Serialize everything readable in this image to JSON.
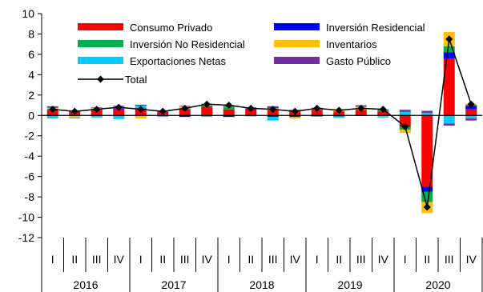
{
  "chart_data": {
    "type": "bar",
    "stacked": true,
    "ylim": [
      -12,
      10
    ],
    "yticks": [
      10,
      8,
      6,
      4,
      2,
      0,
      -2,
      -4,
      -6,
      -8,
      -10,
      -12
    ],
    "quarters": [
      "I",
      "II",
      "III",
      "IV",
      "I",
      "II",
      "III",
      "IV",
      "I",
      "II",
      "III",
      "IV",
      "I",
      "II",
      "III",
      "IV",
      "I",
      "II",
      "III",
      "IV"
    ],
    "years": [
      "2016",
      "2017",
      "2018",
      "2019",
      "2020"
    ],
    "series": [
      {
        "name": "Consumo Privado",
        "color": "#ff0000",
        "values": [
          0.5,
          0.3,
          0.5,
          0.6,
          0.6,
          0.3,
          0.6,
          0.8,
          0.6,
          0.6,
          0.5,
          0.4,
          0.5,
          0.4,
          0.5,
          0.4,
          -1.0,
          -7.0,
          5.6,
          0.6
        ]
      },
      {
        "name": "Inversión Residencial",
        "color": "#0000ff",
        "values": [
          0.05,
          0.05,
          0.05,
          0.05,
          0.05,
          0.05,
          -0.15,
          0.05,
          -0.15,
          0.05,
          -0.15,
          -0.15,
          -0.1,
          -0.05,
          -0.05,
          0.0,
          -0.1,
          -0.5,
          0.6,
          0.35
        ]
      },
      {
        "name": "Inversión No Residencial",
        "color": "#00b050",
        "values": [
          0.1,
          0.05,
          0.1,
          0.1,
          0.1,
          0.05,
          0.1,
          0.1,
          0.3,
          0.1,
          0.1,
          0.1,
          0.1,
          -0.1,
          0.1,
          0.1,
          -0.3,
          -1.0,
          0.6,
          0.1
        ]
      },
      {
        "name": "Inventarios",
        "color": "#ffc000",
        "values": [
          0.1,
          -0.2,
          0.1,
          0.1,
          -0.3,
          0.0,
          0.2,
          0.1,
          0.0,
          0.0,
          0.1,
          -0.1,
          0.0,
          0.1,
          0.2,
          -0.1,
          -0.3,
          -1.1,
          1.4,
          0.1
        ]
      },
      {
        "name": "Exportaciones Netas",
        "color": "#00ccff",
        "values": [
          -0.3,
          -0.1,
          -0.2,
          -0.35,
          0.2,
          -0.15,
          0.0,
          -0.15,
          0.0,
          -0.1,
          -0.35,
          -0.05,
          0.1,
          -0.1,
          0.1,
          -0.1,
          0.35,
          0.25,
          -0.8,
          -0.3
        ]
      },
      {
        "name": "Gasto Público",
        "color": "#7030a0",
        "values": [
          0.15,
          0.05,
          0.05,
          0.1,
          0.1,
          0.05,
          0.05,
          0.1,
          0.05,
          0.05,
          0.2,
          0.05,
          0.05,
          0.1,
          0.1,
          0.1,
          0.2,
          0.2,
          -0.2,
          -0.2
        ]
      }
    ],
    "total": {
      "name": "Total",
      "color": "#000000",
      "values": [
        0.6,
        0.4,
        0.6,
        0.8,
        0.6,
        0.4,
        0.7,
        1.1,
        1.0,
        0.7,
        0.6,
        0.4,
        0.7,
        0.5,
        0.7,
        0.6,
        -1.1,
        -9.0,
        7.5,
        1.1
      ]
    }
  }
}
